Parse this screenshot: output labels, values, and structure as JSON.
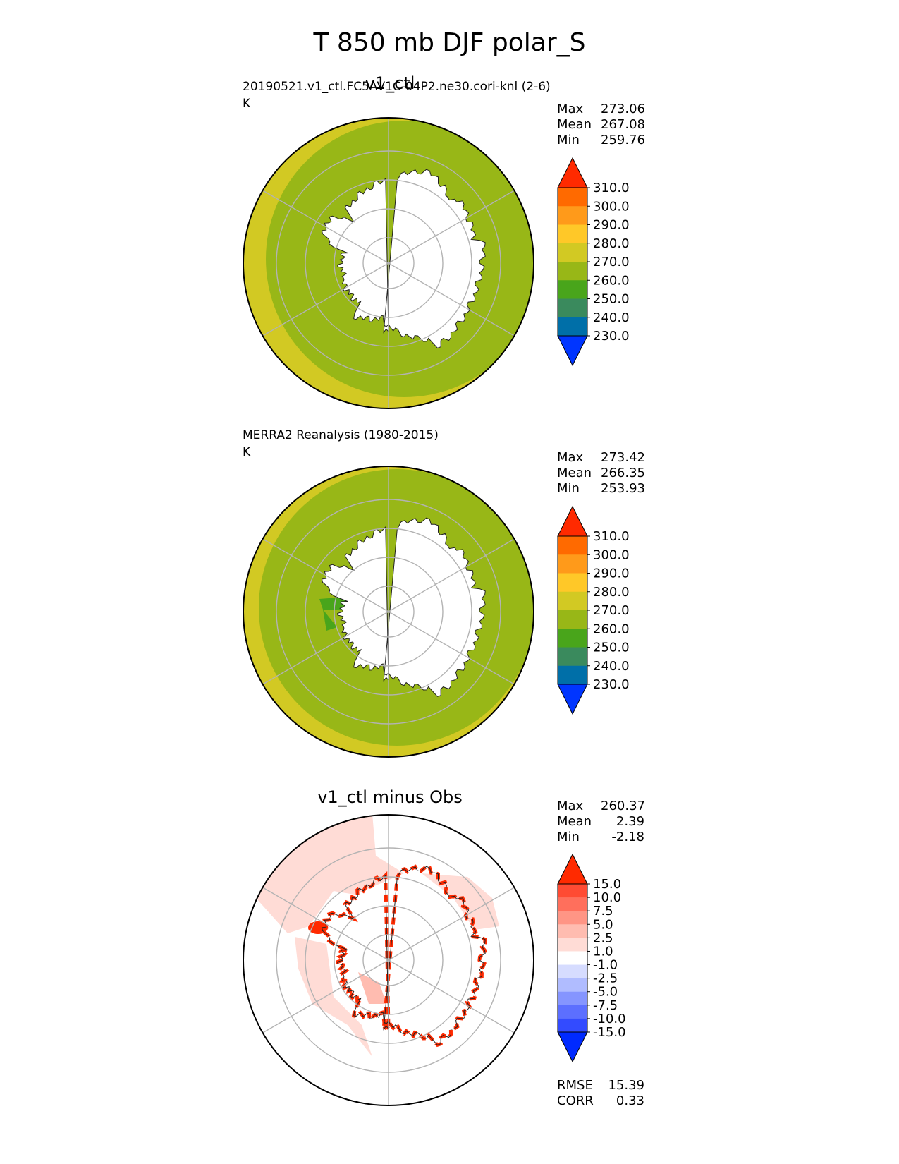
{
  "title": "T 850 mb DJF polar_S",
  "panels": [
    {
      "id": "test",
      "title": "v1_ctl",
      "subtitle": "20190521.v1_ctl.FC5AV1C-04P2.ne30.cori-knl (2-6)",
      "units": "K",
      "stats": [
        {
          "label": "Max",
          "value": "273.06"
        },
        {
          "label": "Mean",
          "value": "267.08"
        },
        {
          "label": "Min",
          "value": "259.76"
        }
      ]
    },
    {
      "id": "ref",
      "title": "",
      "subtitle": "MERRA2 Reanalysis (1980-2015)",
      "units": "K",
      "stats": [
        {
          "label": "Max",
          "value": "273.42"
        },
        {
          "label": "Mean",
          "value": "266.35"
        },
        {
          "label": "Min",
          "value": "253.93"
        }
      ]
    },
    {
      "id": "diff",
      "title": "v1_ctl minus Obs",
      "subtitle": "",
      "units": "",
      "stats": [
        {
          "label": "Max",
          "value": "260.37"
        },
        {
          "label": "Mean",
          "value": "2.39"
        },
        {
          "label": "Min",
          "value": "-2.18"
        }
      ],
      "metrics": [
        {
          "label": "RMSE",
          "value": "15.39"
        },
        {
          "label": "CORR",
          "value": "0.33"
        }
      ]
    }
  ],
  "chart_data": [
    {
      "type": "heatmap",
      "projection": "south-polar-stereographic",
      "title": "v1_ctl",
      "colorbar": {
        "ticks": [
          "310.0",
          "300.0",
          "290.0",
          "280.0",
          "270.0",
          "260.0",
          "250.0",
          "240.0",
          "230.0"
        ],
        "colors": [
          "#ff2a00",
          "#ff6a00",
          "#ff9a1a",
          "#ffc828",
          "#d2c923",
          "#98b717",
          "#49a51b",
          "#3a8a5d",
          "#006fa8",
          "#0035ff"
        ],
        "extend": "both"
      },
      "stats": {
        "max": 273.06,
        "mean": 267.08,
        "min": 259.76
      }
    },
    {
      "type": "heatmap",
      "projection": "south-polar-stereographic",
      "title": "MERRA2 Reanalysis (1980-2015)",
      "colorbar": {
        "ticks": [
          "310.0",
          "300.0",
          "290.0",
          "280.0",
          "270.0",
          "260.0",
          "250.0",
          "240.0",
          "230.0"
        ],
        "colors": [
          "#ff2a00",
          "#ff6a00",
          "#ff9a1a",
          "#ffc828",
          "#d2c923",
          "#98b717",
          "#49a51b",
          "#3a8a5d",
          "#006fa8",
          "#0035ff"
        ],
        "extend": "both"
      },
      "stats": {
        "max": 273.42,
        "mean": 266.35,
        "min": 253.93
      }
    },
    {
      "type": "heatmap",
      "projection": "south-polar-stereographic",
      "title": "v1_ctl minus Obs",
      "colorbar": {
        "ticks": [
          "15.0",
          "10.0",
          "7.5",
          "5.0",
          "2.5",
          "1.0",
          "-1.0",
          "-2.5",
          "-5.0",
          "-7.5",
          "-10.0",
          "-15.0"
        ],
        "colors": [
          "#ff2a00",
          "#ff4b33",
          "#ff6f5c",
          "#ff9585",
          "#ffbcb0",
          "#ffdcd6",
          "#ffffff",
          "#d6dcff",
          "#b0bcff",
          "#8595ff",
          "#5c6fff",
          "#334bff",
          "#002aff"
        ],
        "extend": "both"
      },
      "stats": {
        "max": 260.37,
        "mean": 2.39,
        "min": -2.18
      },
      "metrics": {
        "rmse": 15.39,
        "corr": 0.33
      }
    }
  ]
}
